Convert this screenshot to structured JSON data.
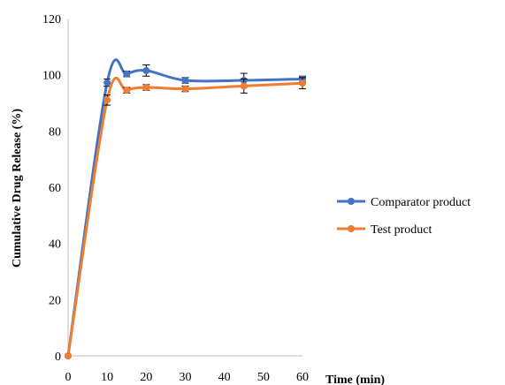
{
  "chart_data": {
    "type": "line",
    "xlabel": "Time (min)",
    "ylabel": "Cumulative Drug Release (%)",
    "xlim": [
      0,
      60
    ],
    "ylim": [
      0,
      120
    ],
    "xticks": [
      0,
      10,
      20,
      30,
      40,
      50,
      60
    ],
    "yticks": [
      0,
      20,
      40,
      60,
      80,
      100,
      120
    ],
    "grid": false,
    "legend_position": "right",
    "x": [
      0,
      10,
      15,
      20,
      30,
      45,
      60
    ],
    "series": [
      {
        "name": "Comparator product",
        "color": "#4472c4",
        "values": [
          0,
          97.2,
          100.3,
          101.5,
          98.0,
          98.0,
          98.5
        ],
        "errors": [
          0,
          1.3,
          1.0,
          2.0,
          1.0,
          2.5,
          1.0
        ]
      },
      {
        "name": "Test product",
        "color": "#ed7d31",
        "values": [
          0,
          91.0,
          94.5,
          95.5,
          95.0,
          96.0,
          97.0
        ],
        "errors": [
          0,
          1.8,
          1.0,
          1.0,
          1.0,
          2.5,
          2.0
        ]
      }
    ]
  }
}
